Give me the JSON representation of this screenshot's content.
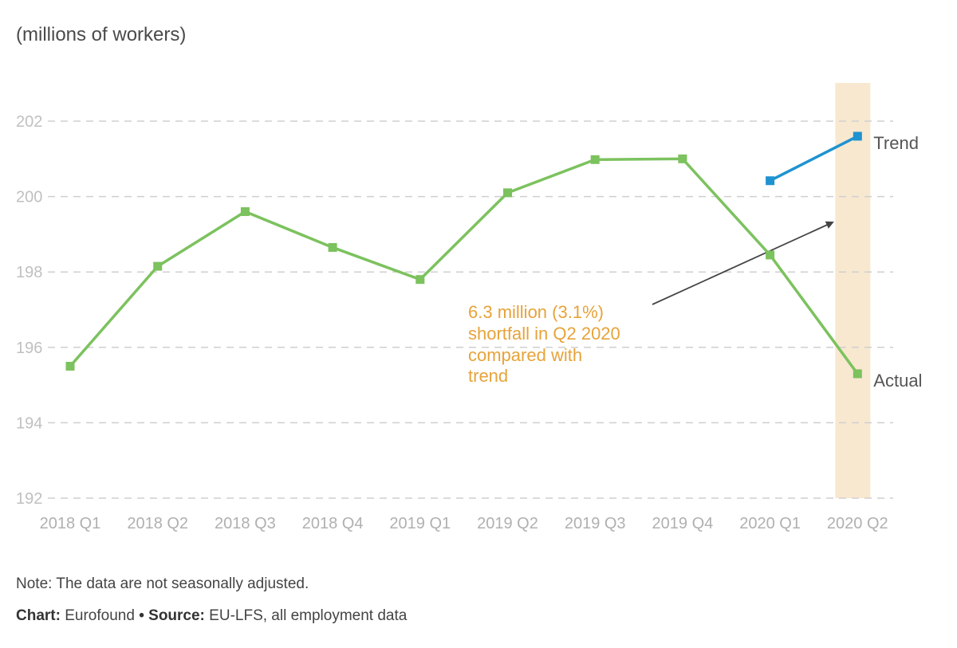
{
  "unit_label": "(millions of workers)",
  "chart_data": {
    "type": "line",
    "categories": [
      "2018 Q1",
      "2018 Q2",
      "2018 Q3",
      "2018 Q4",
      "2019 Q1",
      "2019 Q2",
      "2019 Q3",
      "2019 Q4",
      "2020 Q1",
      "2020 Q2"
    ],
    "series": [
      {
        "name": "Actual",
        "color": "#7cc25e",
        "values": [
          195.5,
          198.15,
          199.6,
          198.65,
          197.8,
          200.1,
          200.98,
          201.0,
          198.45,
          195.3
        ]
      },
      {
        "name": "Trend",
        "color": "#1f93d0",
        "values": [
          null,
          null,
          null,
          null,
          null,
          null,
          null,
          null,
          200.42,
          201.6
        ]
      }
    ],
    "y_ticks": [
      192,
      194,
      196,
      198,
      200,
      202
    ],
    "ylim": [
      192,
      203
    ],
    "highlight_category": "2020 Q2",
    "highlight_color": "#f8e8d0",
    "grid": true,
    "annotation": {
      "lines": [
        "6.3 million (3.1%)",
        "shortfall in Q2 2020",
        "compared with",
        "trend"
      ],
      "color": "#e7a33a"
    }
  },
  "footer": {
    "note": "Note: The data are not seasonally adjusted.",
    "chart_label": "Chart:",
    "chart_value": "Eurofound",
    "separator": "•",
    "source_label": "Source:",
    "source_value": "EU-LFS, all employment data"
  }
}
